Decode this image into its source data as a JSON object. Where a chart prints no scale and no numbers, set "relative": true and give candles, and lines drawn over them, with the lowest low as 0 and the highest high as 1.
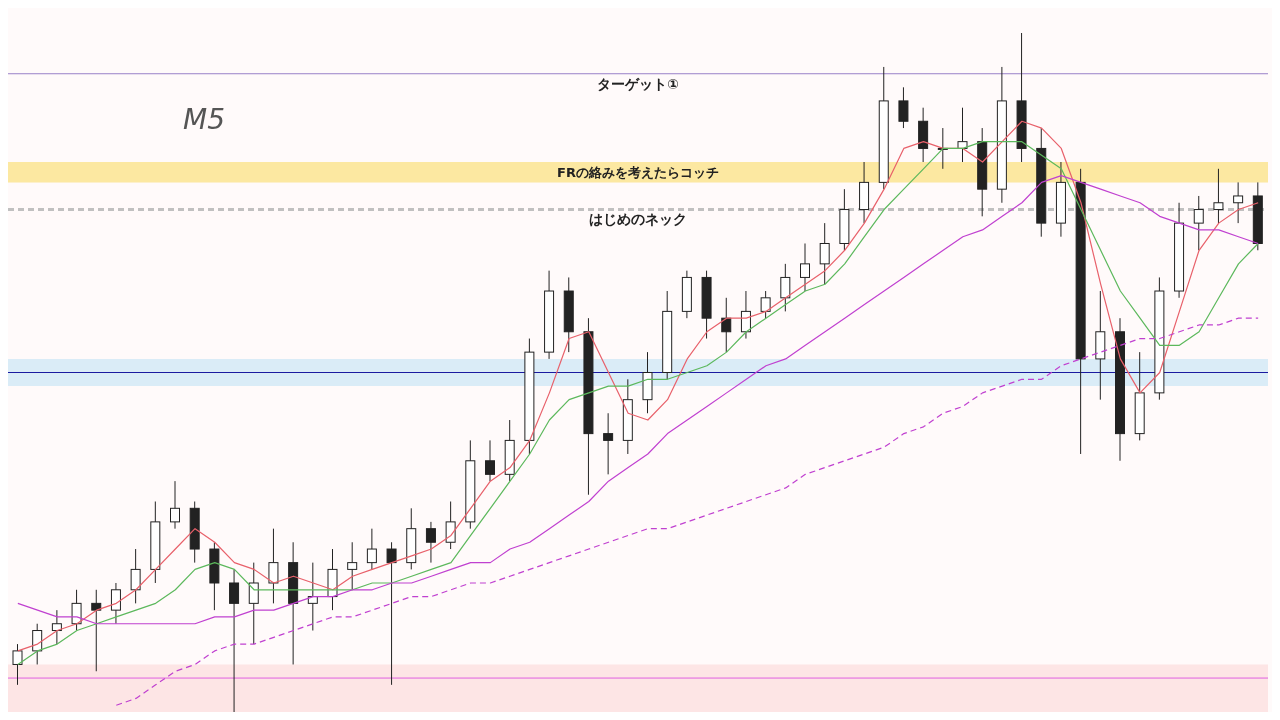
{
  "chart_data": {
    "type": "candlestick",
    "title": "M5",
    "relative": true,
    "tick_labels": false,
    "color": "#222222",
    "categories": [
      null,
      null,
      null,
      null,
      null,
      null,
      null,
      null,
      null,
      null,
      null,
      null,
      null,
      null,
      null,
      null,
      null,
      null,
      null,
      null,
      null,
      null,
      null,
      null,
      null,
      null,
      null,
      null,
      null,
      null,
      null,
      null,
      null,
      null,
      null,
      null,
      null,
      null,
      null,
      null,
      null,
      null,
      null,
      null,
      null,
      null,
      null,
      null,
      null,
      null,
      null,
      null,
      null,
      null,
      null,
      null,
      null,
      null,
      null,
      null,
      null,
      null,
      null,
      null
    ],
    "ohlc": [
      [
        0.07,
        0.1,
        0.04,
        0.09
      ],
      [
        0.09,
        0.13,
        0.07,
        0.12
      ],
      [
        0.12,
        0.15,
        0.1,
        0.13
      ],
      [
        0.13,
        0.18,
        0.12,
        0.16
      ],
      [
        0.16,
        0.18,
        0.06,
        0.15
      ],
      [
        0.15,
        0.19,
        0.13,
        0.18
      ],
      [
        0.18,
        0.24,
        0.16,
        0.21
      ],
      [
        0.21,
        0.31,
        0.19,
        0.28
      ],
      [
        0.28,
        0.34,
        0.27,
        0.3
      ],
      [
        0.3,
        0.31,
        0.22,
        0.24
      ],
      [
        0.24,
        0.25,
        0.15,
        0.19
      ],
      [
        0.19,
        0.21,
        0,
        0.16
      ],
      [
        0.16,
        0.22,
        0.1,
        0.19
      ],
      [
        0.19,
        0.27,
        0.16,
        0.22
      ],
      [
        0.22,
        0.25,
        0.07,
        0.16
      ],
      [
        0.16,
        0.22,
        0.12,
        0.17
      ],
      [
        0.17,
        0.24,
        0.15,
        0.21
      ],
      [
        0.21,
        0.25,
        0.18,
        0.22
      ],
      [
        0.22,
        0.27,
        0.21,
        0.24
      ],
      [
        0.24,
        0.25,
        0.04,
        0.22
      ],
      [
        0.22,
        0.3,
        0.21,
        0.27
      ],
      [
        0.27,
        0.28,
        0.22,
        0.25
      ],
      [
        0.25,
        0.31,
        0.24,
        0.28
      ],
      [
        0.28,
        0.4,
        0.27,
        0.37
      ],
      [
        0.37,
        0.4,
        0.34,
        0.35
      ],
      [
        0.35,
        0.43,
        0.34,
        0.4
      ],
      [
        0.4,
        0.55,
        0.38,
        0.53
      ],
      [
        0.53,
        0.65,
        0.52,
        0.62
      ],
      [
        0.62,
        0.64,
        0.53,
        0.56
      ],
      [
        0.56,
        0.58,
        0.32,
        0.41
      ],
      [
        0.41,
        0.44,
        0.35,
        0.4
      ],
      [
        0.4,
        0.49,
        0.38,
        0.46
      ],
      [
        0.46,
        0.53,
        0.44,
        0.5
      ],
      [
        0.5,
        0.62,
        0.49,
        0.59
      ],
      [
        0.59,
        0.65,
        0.58,
        0.64
      ],
      [
        0.64,
        0.65,
        0.55,
        0.58
      ],
      [
        0.58,
        0.61,
        0.53,
        0.56
      ],
      [
        0.56,
        0.62,
        0.55,
        0.59
      ],
      [
        0.59,
        0.62,
        0.58,
        0.61
      ],
      [
        0.61,
        0.66,
        0.59,
        0.64
      ],
      [
        0.64,
        0.69,
        0.62,
        0.66
      ],
      [
        0.66,
        0.72,
        0.63,
        0.69
      ],
      [
        0.69,
        0.77,
        0.68,
        0.74
      ],
      [
        0.74,
        0.81,
        0.72,
        0.78
      ],
      [
        0.78,
        0.95,
        0.77,
        0.9
      ],
      [
        0.9,
        0.92,
        0.86,
        0.87
      ],
      [
        0.87,
        0.89,
        0.81,
        0.83
      ],
      [
        0.83,
        0.86,
        0.8,
        0.83
      ],
      [
        0.83,
        0.89,
        0.81,
        0.84
      ],
      [
        0.84,
        0.86,
        0.73,
        0.77
      ],
      [
        0.77,
        0.95,
        0.75,
        0.9
      ],
      [
        0.9,
        1,
        0.81,
        0.83
      ],
      [
        0.83,
        0.86,
        0.7,
        0.72
      ],
      [
        0.72,
        0.81,
        0.7,
        0.78
      ],
      [
        0.78,
        0.8,
        0.38,
        0.52
      ],
      [
        0.52,
        0.62,
        0.46,
        0.56
      ],
      [
        0.56,
        0.58,
        0.37,
        0.41
      ],
      [
        0.41,
        0.53,
        0.4,
        0.47
      ],
      [
        0.47,
        0.64,
        0.46,
        0.62
      ],
      [
        0.62,
        0.75,
        0.61,
        0.72
      ],
      [
        0.72,
        0.76,
        0.68,
        0.74
      ],
      [
        0.74,
        0.8,
        0.72,
        0.75
      ],
      [
        0.75,
        0.78,
        0.72,
        0.76
      ],
      [
        0.76,
        0.78,
        0.68,
        0.69
      ]
    ],
    "series": [
      {
        "type": "line",
        "color": "#e8606a",
        "line_style": "solid",
        "values": [
          0.09,
          0.1,
          0.12,
          0.13,
          0.15,
          0.16,
          0.18,
          0.21,
          0.24,
          0.27,
          0.25,
          0.22,
          0.21,
          0.19,
          0.2,
          0.19,
          0.18,
          0.2,
          0.21,
          0.22,
          0.23,
          0.24,
          0.26,
          0.3,
          0.34,
          0.36,
          0.4,
          0.47,
          0.55,
          0.56,
          0.5,
          0.44,
          0.43,
          0.46,
          0.52,
          0.56,
          0.58,
          0.58,
          0.59,
          0.61,
          0.63,
          0.65,
          0.68,
          0.72,
          0.77,
          0.83,
          0.84,
          0.83,
          0.83,
          0.81,
          0.84,
          0.87,
          0.86,
          0.83,
          0.75,
          0.63,
          0.52,
          0.47,
          0.5,
          0.59,
          0.68,
          0.72,
          0.74,
          0.75
        ]
      },
      {
        "type": "line",
        "color": "#5cb85c",
        "line_style": "solid",
        "values": [
          0.07,
          0.09,
          0.1,
          0.12,
          0.13,
          0.14,
          0.15,
          0.16,
          0.18,
          0.21,
          0.22,
          0.21,
          0.18,
          0.18,
          0.18,
          0.18,
          0.18,
          0.18,
          0.19,
          0.19,
          0.2,
          0.21,
          0.22,
          0.26,
          0.3,
          0.34,
          0.38,
          0.43,
          0.46,
          0.47,
          0.48,
          0.48,
          0.49,
          0.49,
          0.5,
          0.51,
          0.53,
          0.56,
          0.58,
          0.6,
          0.62,
          0.63,
          0.66,
          0.7,
          0.74,
          0.77,
          0.8,
          0.83,
          0.83,
          0.84,
          0.84,
          0.84,
          0.82,
          0.8,
          0.74,
          0.68,
          0.62,
          0.58,
          0.54,
          0.54,
          0.56,
          0.61,
          0.66,
          0.69
        ]
      },
      {
        "type": "line",
        "color": "#c040d0",
        "line_style": "solid",
        "values": [
          0.16,
          0.15,
          0.14,
          0.14,
          0.13,
          0.13,
          0.13,
          0.13,
          0.13,
          0.13,
          0.14,
          0.14,
          0.15,
          0.15,
          0.16,
          0.17,
          0.17,
          0.18,
          0.18,
          0.19,
          0.19,
          0.2,
          0.21,
          0.22,
          0.22,
          0.24,
          0.25,
          0.27,
          0.29,
          0.31,
          0.34,
          0.36,
          0.38,
          0.41,
          0.43,
          0.45,
          0.47,
          0.49,
          0.51,
          0.52,
          0.54,
          0.56,
          0.58,
          0.6,
          0.62,
          0.64,
          0.66,
          0.68,
          0.7,
          0.71,
          0.73,
          0.75,
          0.78,
          0.79,
          0.78,
          0.77,
          0.76,
          0.75,
          0.73,
          0.72,
          0.71,
          0.71,
          0.7,
          0.69
        ]
      },
      {
        "type": "line",
        "color": "#c040d0",
        "line_style": "dashed",
        "values": [
          null,
          null,
          null,
          null,
          null,
          0.01,
          0.02,
          0.04,
          0.06,
          0.07,
          0.09,
          0.1,
          0.1,
          0.11,
          0.12,
          0.13,
          0.14,
          0.14,
          0.15,
          0.16,
          0.17,
          0.17,
          0.18,
          0.19,
          0.19,
          0.2,
          0.21,
          0.22,
          0.23,
          0.24,
          0.25,
          0.26,
          0.27,
          0.27,
          0.28,
          0.29,
          0.3,
          0.31,
          0.32,
          0.33,
          0.35,
          0.36,
          0.37,
          0.38,
          0.39,
          0.41,
          0.42,
          0.44,
          0.45,
          0.47,
          0.48,
          0.49,
          0.49,
          0.51,
          0.52,
          0.53,
          0.54,
          0.55,
          0.55,
          0.56,
          0.57,
          0.57,
          0.58,
          0.58
        ]
      }
    ],
    "ref_lines": [
      {
        "axis": "y",
        "value": 0.5,
        "label": null,
        "color": "#1a1aa0",
        "line_style": "solid"
      },
      {
        "axis": "y",
        "value": 0.94,
        "label": "ターゲット①",
        "color": "#9a80c8",
        "line_style": "solid"
      },
      {
        "axis": "y",
        "value": 0.74,
        "label": "はじめのネック",
        "color": "#c0c0c0",
        "line_style": "dashed"
      },
      {
        "axis": "y",
        "value": 0.05,
        "label": null,
        "color": "#e060e0",
        "line_style": "solid"
      }
    ],
    "bands": [
      {
        "axis": "y",
        "from": 0.48,
        "to": 0.52,
        "label": null,
        "color": "#d3e9f6"
      },
      {
        "axis": "y",
        "from": 0.78,
        "to": 0.81,
        "label": "FRの絡みを考えたらコッチ",
        "color": "#fbe490"
      },
      {
        "axis": "y",
        "from": 0,
        "to": 0.07,
        "label": null,
        "color": "#fde0e0"
      }
    ]
  }
}
